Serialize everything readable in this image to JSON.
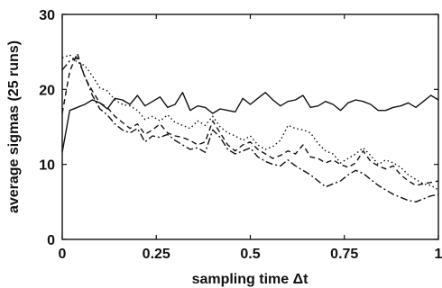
{
  "chart_data": {
    "type": "line",
    "title": "",
    "xlabel": "sampling time Δt",
    "ylabel": "average sigmas (25 runs)",
    "xlim": [
      0,
      1
    ],
    "ylim": [
      0,
      30
    ],
    "x_ticks": [
      0,
      0.25,
      0.5,
      0.75,
      1
    ],
    "x_tick_labels": [
      "0",
      "0.25",
      "0.5",
      "0.75",
      "1"
    ],
    "y_ticks": [
      0,
      10,
      20,
      30
    ],
    "y_tick_labels": [
      "0",
      "10",
      "20",
      "30"
    ],
    "grid": false,
    "legend": "none",
    "x": [
      0.0,
      0.02,
      0.04,
      0.06,
      0.08,
      0.1,
      0.12,
      0.14,
      0.16,
      0.18,
      0.2,
      0.22,
      0.24,
      0.26,
      0.28,
      0.3,
      0.32,
      0.34,
      0.36,
      0.38,
      0.4,
      0.42,
      0.44,
      0.46,
      0.48,
      0.5,
      0.52,
      0.54,
      0.56,
      0.58,
      0.6,
      0.62,
      0.64,
      0.66,
      0.68,
      0.7,
      0.72,
      0.74,
      0.76,
      0.78,
      0.8,
      0.82,
      0.84,
      0.86,
      0.88,
      0.9,
      0.92,
      0.94,
      0.96,
      0.98,
      1.0
    ],
    "series": [
      {
        "style": "solid",
        "values": [
          11.6,
          17.2,
          17.6,
          18.0,
          18.6,
          18.2,
          17.4,
          18.8,
          18.6,
          18.0,
          19.2,
          17.8,
          18.4,
          19.0,
          17.6,
          18.0,
          19.6,
          17.2,
          17.8,
          17.6,
          16.8,
          17.4,
          17.2,
          17.0,
          18.8,
          18.0,
          18.8,
          19.6,
          18.6,
          17.8,
          18.4,
          18.6,
          19.2,
          17.6,
          17.8,
          18.4,
          18.0,
          17.2,
          18.2,
          18.6,
          18.4,
          18.0,
          17.2,
          17.2,
          17.6,
          17.8,
          18.2,
          17.6,
          18.4,
          19.2,
          18.6
        ]
      },
      {
        "style": "dotted",
        "values": [
          24.2,
          24.6,
          23.6,
          23.2,
          21.8,
          20.2,
          19.8,
          18.6,
          18.0,
          17.8,
          17.2,
          16.0,
          16.4,
          15.8,
          16.6,
          15.6,
          15.2,
          14.8,
          15.8,
          15.2,
          16.4,
          15.0,
          14.2,
          13.8,
          13.2,
          13.8,
          12.6,
          12.0,
          12.4,
          13.2,
          15.2,
          14.8,
          14.6,
          14.2,
          12.8,
          11.8,
          11.4,
          10.2,
          10.8,
          11.4,
          12.2,
          11.2,
          10.0,
          10.6,
          10.2,
          9.6,
          8.6,
          8.0,
          7.4,
          7.2,
          6.6
        ]
      },
      {
        "style": "dashed",
        "values": [
          16.8,
          22.4,
          24.8,
          21.6,
          19.8,
          18.2,
          17.6,
          16.4,
          15.6,
          14.8,
          15.4,
          14.0,
          14.6,
          15.4,
          14.2,
          13.8,
          13.6,
          13.2,
          12.6,
          13.0,
          15.8,
          14.2,
          12.6,
          11.8,
          12.6,
          13.0,
          12.0,
          11.4,
          10.8,
          11.2,
          11.8,
          11.4,
          12.6,
          11.0,
          10.8,
          10.2,
          10.6,
          10.0,
          9.6,
          10.2,
          11.8,
          10.4,
          9.8,
          9.4,
          9.8,
          8.6,
          7.8,
          7.2,
          7.4,
          7.6,
          7.8
        ]
      },
      {
        "style": "dashdot",
        "values": [
          22.6,
          23.8,
          24.2,
          21.8,
          19.2,
          17.4,
          16.6,
          15.4,
          14.6,
          14.2,
          14.8,
          13.0,
          13.8,
          13.6,
          14.0,
          13.2,
          12.6,
          12.0,
          12.2,
          11.6,
          14.6,
          13.6,
          12.0,
          11.4,
          11.8,
          12.2,
          11.0,
          10.4,
          10.0,
          9.8,
          10.6,
          9.8,
          9.2,
          8.6,
          7.8,
          7.0,
          7.4,
          7.8,
          8.6,
          9.2,
          8.8,
          8.0,
          7.2,
          6.6,
          6.0,
          5.6,
          5.2,
          5.0,
          5.4,
          5.8,
          6.0
        ]
      }
    ]
  }
}
